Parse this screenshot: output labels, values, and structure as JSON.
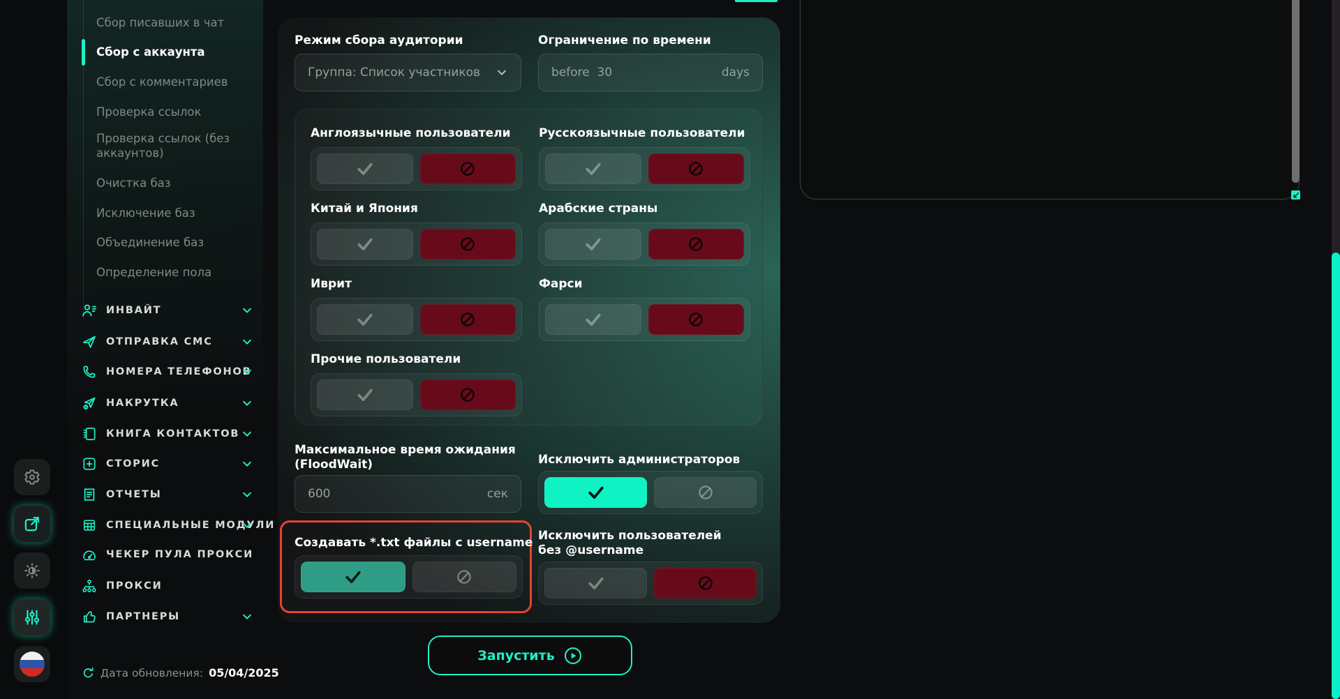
{
  "accent": "#1ef0c6",
  "colors": {
    "toggle_on_bright": "#0ef2c4",
    "toggle_on_muted": "#2f9d86",
    "toggle_off_red": "#670b1a",
    "highlight_border": "#e8432f"
  },
  "rail": {
    "buttons": [
      {
        "name": "settings-button",
        "icon": "gear-icon",
        "active": false,
        "accent": false
      },
      {
        "name": "open-external-button",
        "icon": "external-link-icon",
        "active": false,
        "accent": true
      },
      {
        "name": "theme-button",
        "icon": "brightness-icon",
        "active": false,
        "accent": false
      },
      {
        "name": "modules-button",
        "icon": "sliders-icon",
        "active": true,
        "accent": true
      },
      {
        "name": "language-button",
        "icon": "russian-flag-icon",
        "active": false,
        "accent": false
      }
    ]
  },
  "sidebar": {
    "submenu": [
      {
        "label": "Сбор писавших в чат",
        "active": false
      },
      {
        "label": "Сбор с аккаунта",
        "active": true
      },
      {
        "label": "Сбор с комментариев",
        "active": false
      },
      {
        "label": "Проверка ссылок",
        "active": false
      },
      {
        "label": "Проверка ссылок (без аккаунтов)",
        "active": false
      },
      {
        "label": "Очистка баз",
        "active": false
      },
      {
        "label": "Исключение баз",
        "active": false
      },
      {
        "label": "Объединение баз",
        "active": false
      },
      {
        "label": "Определение пола",
        "active": false
      }
    ],
    "sections": [
      {
        "label": "ИНВАЙТ",
        "icon": "invite-users-icon",
        "chevron": true
      },
      {
        "label": "ОТПРАВКА СМС",
        "icon": "send-icon",
        "chevron": true
      },
      {
        "label": "НОМЕРА ТЕЛЕФОНОВ",
        "icon": "phone-icon",
        "chevron": true
      },
      {
        "label": "НАКРУТКА",
        "icon": "boost-icon",
        "chevron": true
      },
      {
        "label": "КНИГА КОНТАКТОВ",
        "icon": "contacts-book-icon",
        "chevron": true
      },
      {
        "label": "СТОРИС",
        "icon": "stories-icon",
        "chevron": true
      },
      {
        "label": "ОТЧЕТЫ",
        "icon": "reports-icon",
        "chevron": true
      },
      {
        "label": "СПЕЦИАЛЬНЫЕ МОДУЛИ",
        "icon": "special-modules-icon",
        "chevron": true
      },
      {
        "label": "ЧЕКЕР ПУЛА ПРОКСИ",
        "icon": "proxy-checker-icon",
        "chevron": false
      },
      {
        "label": "ПРОКСИ",
        "icon": "proxy-icon",
        "chevron": false
      },
      {
        "label": "ПАРТНЕРЫ",
        "icon": "partners-icon",
        "chevron": true
      }
    ],
    "update": {
      "label": "Дата обновления:",
      "date": "05/04/2025"
    }
  },
  "main": {
    "mode": {
      "label": "Режим сбора аудитории",
      "value": "Группа: Список участников"
    },
    "time_limit": {
      "label": "Ограничение по времени",
      "value": "before  30",
      "suffix": "days"
    },
    "language_filters": [
      {
        "label": "Англоязычные пользователи",
        "state": "off"
      },
      {
        "label": "Русскоязычные пользователи",
        "state": "off"
      },
      {
        "label": "Китай и Япония",
        "state": "off"
      },
      {
        "label": "Арабские страны",
        "state": "off"
      },
      {
        "label": "Иврит",
        "state": "off"
      },
      {
        "label": "Фарси",
        "state": "off"
      },
      {
        "label": "Прочие пользователи",
        "state": "off"
      }
    ],
    "floodwait": {
      "label": "Максимальное время ожидания (FloodWait)",
      "value": "600",
      "suffix": "сек"
    },
    "exclude_admins": {
      "label": "Исключить администраторов",
      "state": "on",
      "on_style": "bright"
    },
    "txt_files": {
      "label": "Создавать *.txt файлы с username",
      "state": "on",
      "on_style": "muted",
      "highlighted": true
    },
    "exclude_no_username": {
      "label": "Исключить пользователей без @username",
      "state": "off"
    },
    "run_button": {
      "label": "Запустить"
    }
  }
}
